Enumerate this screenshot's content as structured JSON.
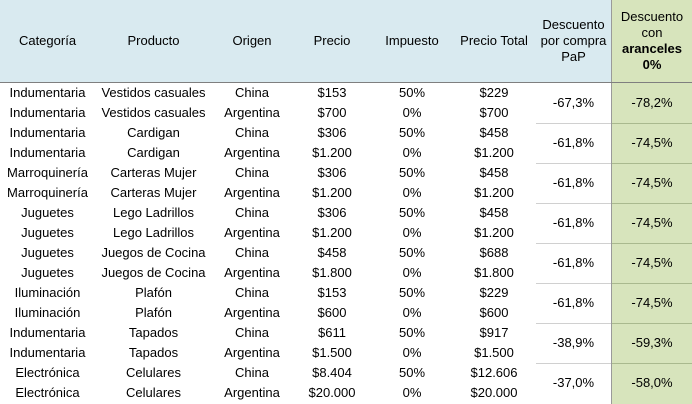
{
  "headers": {
    "categoria": "Categoría",
    "producto": "Producto",
    "origen": "Origen",
    "precio": "Precio",
    "impuesto": "Impuesto",
    "precio_total": "Precio Total",
    "descuento_pap": [
      "Descuento",
      "por compra",
      "PaP"
    ],
    "descuento_aranceles": [
      "Descuento",
      "con",
      "aranceles",
      "0%"
    ]
  },
  "rows": [
    {
      "categoria": "Indumentaria",
      "producto": "Vestidos casuales",
      "origen": "China",
      "precio": "$153",
      "impuesto": "50%",
      "total": "$229"
    },
    {
      "categoria": "Indumentaria",
      "producto": "Vestidos casuales",
      "origen": "Argentina",
      "precio": "$700",
      "impuesto": "0%",
      "total": "$700"
    },
    {
      "categoria": "Indumentaria",
      "producto": "Cardigan",
      "origen": "China",
      "precio": "$306",
      "impuesto": "50%",
      "total": "$458"
    },
    {
      "categoria": "Indumentaria",
      "producto": "Cardigan",
      "origen": "Argentina",
      "precio": "$1.200",
      "impuesto": "0%",
      "total": "$1.200"
    },
    {
      "categoria": "Marroquinería",
      "producto": "Carteras Mujer",
      "origen": "China",
      "precio": "$306",
      "impuesto": "50%",
      "total": "$458"
    },
    {
      "categoria": "Marroquinería",
      "producto": "Carteras Mujer",
      "origen": "Argentina",
      "precio": "$1.200",
      "impuesto": "0%",
      "total": "$1.200"
    },
    {
      "categoria": "Juguetes",
      "producto": "Lego Ladrillos",
      "origen": "China",
      "precio": "$306",
      "impuesto": "50%",
      "total": "$458"
    },
    {
      "categoria": "Juguetes",
      "producto": "Lego Ladrillos",
      "origen": "Argentina",
      "precio": "$1.200",
      "impuesto": "0%",
      "total": "$1.200"
    },
    {
      "categoria": "Juguetes",
      "producto": "Juegos de Cocina",
      "origen": "China",
      "precio": "$458",
      "impuesto": "50%",
      "total": "$688"
    },
    {
      "categoria": "Juguetes",
      "producto": "Juegos de Cocina",
      "origen": "Argentina",
      "precio": "$1.800",
      "impuesto": "0%",
      "total": "$1.800"
    },
    {
      "categoria": "Iluminación",
      "producto": "Plafón",
      "origen": "China",
      "precio": "$153",
      "impuesto": "50%",
      "total": "$229"
    },
    {
      "categoria": "Iluminación",
      "producto": "Plafón",
      "origen": "Argentina",
      "precio": "$600",
      "impuesto": "0%",
      "total": "$600"
    },
    {
      "categoria": "Indumentaria",
      "producto": "Tapados",
      "origen": "China",
      "precio": "$611",
      "impuesto": "50%",
      "total": "$917"
    },
    {
      "categoria": "Indumentaria",
      "producto": "Tapados",
      "origen": "Argentina",
      "precio": "$1.500",
      "impuesto": "0%",
      "total": "$1.500"
    },
    {
      "categoria": "Electrónica",
      "producto": "Celulares",
      "origen": "China",
      "precio": "$8.404",
      "impuesto": "50%",
      "total": "$12.606"
    },
    {
      "categoria": "Electrónica",
      "producto": "Celulares",
      "origen": "Argentina",
      "precio": "$20.000",
      "impuesto": "0%",
      "total": "$20.000"
    }
  ],
  "discounts": [
    {
      "pap": "-67,3%",
      "aranceles": "-78,2%"
    },
    {
      "pap": "-61,8%",
      "aranceles": "-74,5%"
    },
    {
      "pap": "-61,8%",
      "aranceles": "-74,5%"
    },
    {
      "pap": "-61,8%",
      "aranceles": "-74,5%"
    },
    {
      "pap": "-61,8%",
      "aranceles": "-74,5%"
    },
    {
      "pap": "-61,8%",
      "aranceles": "-74,5%"
    },
    {
      "pap": "-38,9%",
      "aranceles": "-59,3%"
    },
    {
      "pap": "-37,0%",
      "aranceles": "-58,0%"
    }
  ]
}
